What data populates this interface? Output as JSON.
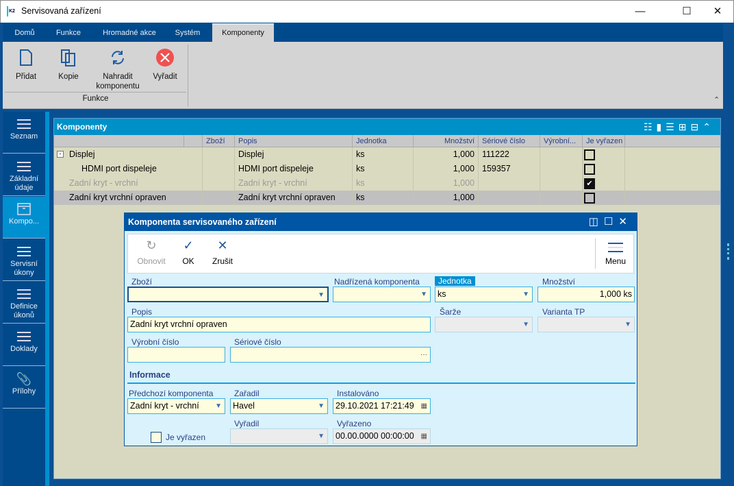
{
  "window": {
    "title": "Servisovaná zařízení",
    "logo": "K2",
    "controls": [
      "minimize-icon",
      "maximize-icon",
      "close-icon"
    ]
  },
  "ribbon": {
    "tabs": [
      {
        "label": "Domů"
      },
      {
        "label": "Funkce"
      },
      {
        "label": "Hromadné akce"
      },
      {
        "label": "Systém"
      },
      {
        "label": "Komponenty",
        "selected": true
      }
    ],
    "buttons": [
      {
        "label": "Přidat",
        "icon": "new-document-icon"
      },
      {
        "label": "Kopie",
        "icon": "copy-icon"
      },
      {
        "label": "Nahradit komponentu",
        "icon": "refresh-icon"
      },
      {
        "label": "Vyřadit",
        "icon": "remove-icon"
      }
    ],
    "group_label": "Funkce",
    "remove_color": "#f05050"
  },
  "sidebar": {
    "items": [
      {
        "label": "Seznam",
        "icon": "list-icon"
      },
      {
        "label": "Základní údaje",
        "icon": "bullet-list-icon"
      },
      {
        "label": "Kompo...",
        "icon": "archive-box-icon",
        "selected": true
      },
      {
        "label": "Servisní úkony",
        "icon": "list-icon"
      },
      {
        "label": "Definice úkonů",
        "icon": "list-icon"
      },
      {
        "label": "Doklady",
        "icon": "list-icon"
      },
      {
        "label": "Přílohy",
        "icon": "paperclip-icon"
      }
    ]
  },
  "grid": {
    "title": "Komponenty",
    "columns": [
      "",
      "",
      "Zboží",
      "Popis",
      "Jednotka",
      "Množství",
      "Sériové číslo",
      "Výrobní...",
      "Je vyřazen"
    ],
    "rows": [
      {
        "name": "Displej",
        "zbozi": "",
        "popis": "Displej",
        "jednotka": "ks",
        "mnozstvi": "1,000",
        "seriove": "111222",
        "vyrobni": "",
        "vyrazen": false
      },
      {
        "name": "HDMI port dispeleje",
        "zbozi": "",
        "popis": "HDMI port dispeleje",
        "jednotka": "ks",
        "mnozstvi": "1,000",
        "seriove": "159357",
        "vyrobni": "",
        "vyrazen": false
      },
      {
        "name": "Zadní kryt - vrchní",
        "zbozi": "",
        "popis": "Zadní kryt - vrchní",
        "jednotka": "ks",
        "mnozstvi": "1,000",
        "seriove": "",
        "vyrobni": "",
        "vyrazen": true
      },
      {
        "name": "Zadní kryt vrchní opraven",
        "zbozi": "",
        "popis": "Zadní kryt vrchní opraven",
        "jednotka": "ks",
        "mnozstvi": "1,000",
        "seriove": "",
        "vyrobni": "",
        "vyrazen": false,
        "selected": true
      }
    ]
  },
  "dialog": {
    "title": "Komponenta servisovaného zařízení",
    "toolbar": {
      "refresh": "Obnovit",
      "ok": "OK",
      "cancel": "Zrušit",
      "menu": "Menu"
    },
    "fields": {
      "zbozi": {
        "label": "Zboží",
        "value": ""
      },
      "nadrizena": {
        "label": "Nadřízená komponenta",
        "value": ""
      },
      "jednotka": {
        "label": "Jednotka",
        "value": "ks"
      },
      "mnozstvi": {
        "label": "Množství",
        "value": "1,000 ks"
      },
      "popis": {
        "label": "Popis",
        "value": "Zadní kryt vrchní opraven"
      },
      "sarze": {
        "label": "Šarže",
        "value": ""
      },
      "varianta": {
        "label": "Varianta TP",
        "value": ""
      },
      "vyrobni": {
        "label": "Výrobní číslo",
        "value": ""
      },
      "seriove": {
        "label": "Sériové číslo",
        "value": "",
        "button": "···"
      },
      "section": "Informace",
      "predchozi": {
        "label": "Předchozí komponenta",
        "value": "Zadní kryt - vrchní"
      },
      "zaradil": {
        "label": "Zařadil",
        "value": "Havel"
      },
      "instalovano": {
        "label": "Instalováno",
        "value": "29.10.2021 17:21:49"
      },
      "vyradil": {
        "label": "Vyřadil",
        "value": ""
      },
      "vyrazeno": {
        "label": "Vyřazeno",
        "value": "00.00.0000 00:00:00"
      },
      "je_vyrazen": {
        "label": "Je vyřazen",
        "checked": false
      }
    }
  }
}
